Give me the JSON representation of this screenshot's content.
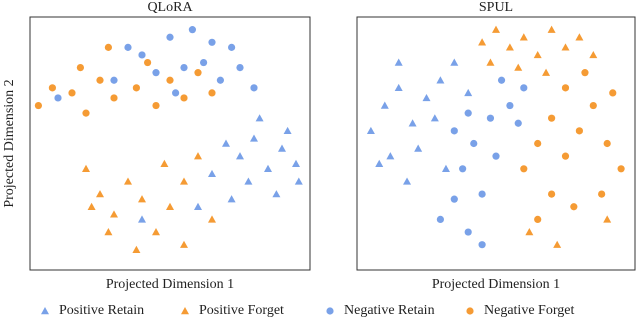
{
  "chart_data": [
    {
      "type": "scatter",
      "title": "QLoRA",
      "xlabel": "Projected Dimension 1",
      "ylabel": "Projected Dimension 2",
      "xlim": [
        0,
        100
      ],
      "ylim": [
        0,
        100
      ],
      "series": [
        {
          "name": "Positive Retain",
          "color": "#6a97e6",
          "marker": "triangle",
          "x": [
            70,
            75,
            80,
            85,
            90,
            95,
            88,
            78,
            72,
            92,
            82,
            65,
            60,
            40,
            96
          ],
          "values": [
            50,
            45,
            52,
            40,
            48,
            42,
            30,
            35,
            28,
            55,
            60,
            38,
            25,
            20,
            35
          ]
        },
        {
          "name": "Positive Forget",
          "color": "#f4901e",
          "marker": "triangle",
          "x": [
            20,
            25,
            30,
            35,
            40,
            45,
            50,
            55,
            38,
            28,
            60,
            48,
            65,
            22,
            55
          ],
          "values": [
            40,
            30,
            22,
            35,
            28,
            15,
            25,
            35,
            8,
            15,
            45,
            42,
            20,
            25,
            10
          ]
        },
        {
          "name": "Negative Retain",
          "color": "#6a97e6",
          "marker": "circle",
          "x": [
            40,
            50,
            58,
            65,
            72,
            55,
            45,
            62,
            75,
            35,
            68,
            52,
            80,
            10,
            30
          ],
          "values": [
            85,
            92,
            95,
            90,
            88,
            80,
            78,
            82,
            80,
            88,
            75,
            70,
            72,
            68,
            75
          ]
        },
        {
          "name": "Negative Forget",
          "color": "#f4901e",
          "marker": "circle",
          "x": [
            3,
            8,
            15,
            20,
            25,
            30,
            38,
            45,
            50,
            55,
            60,
            42,
            28,
            18,
            65
          ],
          "values": [
            65,
            72,
            70,
            62,
            75,
            68,
            72,
            65,
            75,
            68,
            78,
            82,
            88,
            80,
            70
          ]
        }
      ]
    },
    {
      "type": "scatter",
      "title": "SPUL",
      "xlabel": "Projected Dimension 1",
      "xlim": [
        0,
        100
      ],
      "ylim": [
        0,
        100
      ],
      "series": [
        {
          "color": "#6a97e6",
          "marker": "triangle",
          "x": [
            5,
            10,
            15,
            20,
            12,
            25,
            30,
            18,
            8,
            22,
            28,
            35,
            15,
            32,
            40
          ],
          "values": [
            55,
            65,
            72,
            58,
            45,
            68,
            75,
            35,
            42,
            48,
            60,
            82,
            82,
            40,
            70
          ]
        },
        {
          "color": "#f4901e",
          "marker": "triangle",
          "x": [
            45,
            50,
            55,
            60,
            65,
            70,
            75,
            80,
            58,
            68,
            85,
            48,
            62,
            90,
            72
          ],
          "values": [
            90,
            95,
            88,
            92,
            85,
            95,
            88,
            92,
            80,
            78,
            85,
            82,
            15,
            20,
            10
          ]
        },
        {
          "color": "#6a97e6",
          "marker": "circle",
          "x": [
            30,
            35,
            40,
            38,
            42,
            45,
            48,
            50,
            55,
            60,
            45,
            35,
            52,
            40,
            58
          ],
          "values": [
            20,
            28,
            15,
            40,
            50,
            30,
            60,
            45,
            65,
            72,
            10,
            55,
            75,
            62,
            58
          ]
        },
        {
          "color": "#f4901e",
          "marker": "circle",
          "x": [
            60,
            65,
            70,
            75,
            80,
            85,
            90,
            95,
            88,
            78,
            70,
            65,
            92,
            82,
            75
          ],
          "values": [
            40,
            50,
            60,
            45,
            55,
            65,
            50,
            40,
            30,
            25,
            30,
            20,
            70,
            78,
            72
          ]
        }
      ]
    }
  ]
}
